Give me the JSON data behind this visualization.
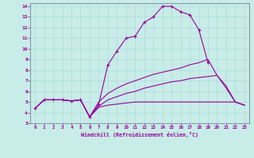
{
  "xlabel": "Windchill (Refroidissement éolien,°C)",
  "bg_color": "#c8ece8",
  "line_color": "#990099",
  "xlim": [
    -0.5,
    23.5
  ],
  "ylim": [
    3,
    14.3
  ],
  "xticks": [
    0,
    1,
    2,
    3,
    4,
    5,
    6,
    7,
    8,
    9,
    10,
    11,
    12,
    13,
    14,
    15,
    16,
    17,
    18,
    19,
    20,
    21,
    22,
    23
  ],
  "yticks": [
    3,
    4,
    5,
    6,
    7,
    8,
    9,
    10,
    11,
    12,
    13,
    14
  ],
  "lines": [
    {
      "x": [
        0,
        1,
        2,
        3,
        4,
        5,
        6,
        7,
        8,
        9,
        10,
        11,
        12,
        13,
        14,
        15,
        16,
        17,
        18,
        19
      ],
      "y": [
        4.4,
        5.2,
        5.2,
        5.2,
        5.1,
        5.2,
        3.6,
        4.8,
        8.5,
        9.8,
        11.0,
        11.2,
        12.5,
        13.0,
        14.0,
        14.0,
        13.5,
        13.2,
        11.8,
        8.7
      ],
      "marker": "+"
    },
    {
      "x": [
        0,
        1,
        2,
        3,
        4,
        5,
        6,
        7,
        8,
        9,
        10,
        11,
        12,
        13,
        14,
        15,
        16,
        17,
        18,
        19,
        20,
        21,
        22,
        23
      ],
      "y": [
        4.4,
        5.2,
        5.2,
        5.2,
        5.1,
        5.2,
        3.6,
        5.0,
        5.8,
        6.3,
        6.7,
        7.0,
        7.3,
        7.6,
        7.8,
        8.0,
        8.2,
        8.5,
        8.7,
        9.0,
        7.5,
        6.5,
        5.0,
        4.7
      ],
      "marker": null
    },
    {
      "x": [
        0,
        1,
        2,
        3,
        4,
        5,
        6,
        7,
        8,
        9,
        10,
        11,
        12,
        13,
        14,
        15,
        16,
        17,
        18,
        19,
        20,
        21,
        22,
        23
      ],
      "y": [
        4.4,
        5.2,
        5.2,
        5.2,
        5.1,
        5.2,
        3.6,
        4.6,
        5.2,
        5.5,
        5.8,
        6.0,
        6.3,
        6.5,
        6.7,
        6.9,
        7.0,
        7.2,
        7.3,
        7.4,
        7.5,
        6.3,
        5.0,
        4.7
      ],
      "marker": null
    },
    {
      "x": [
        0,
        1,
        2,
        3,
        4,
        5,
        6,
        7,
        8,
        9,
        10,
        11,
        12,
        13,
        14,
        15,
        16,
        17,
        18,
        19,
        20,
        21,
        22,
        23
      ],
      "y": [
        4.4,
        5.2,
        5.2,
        5.2,
        5.1,
        5.2,
        3.6,
        4.5,
        4.7,
        4.8,
        4.9,
        5.0,
        5.0,
        5.0,
        5.0,
        5.0,
        5.0,
        5.0,
        5.0,
        5.0,
        5.0,
        5.0,
        5.0,
        4.7
      ],
      "marker": null
    }
  ]
}
